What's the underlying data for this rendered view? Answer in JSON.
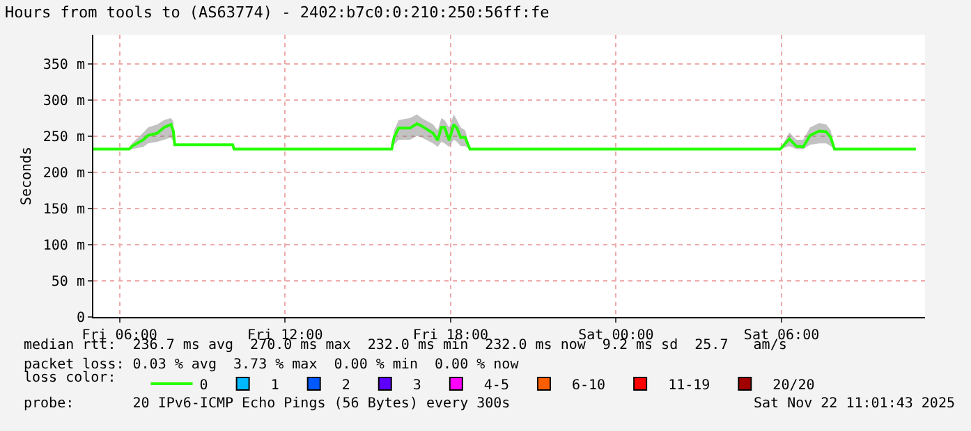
{
  "chart_data": {
    "type": "line",
    "title": "Hours from tools to (AS63774) - 2402:b7c0:0:210:250:56ff:fe",
    "ylabel": "Seconds",
    "x": [
      "2025-11-21T05:03",
      "2025-11-21T06:21",
      "2025-11-21T06:27",
      "2025-11-21T06:52",
      "2025-11-21T07:02",
      "2025-11-21T07:22",
      "2025-11-21T07:37",
      "2025-11-21T07:52",
      "2025-11-21T07:57",
      "2025-11-21T08:00",
      "2025-11-21T10:06",
      "2025-11-21T10:09",
      "2025-11-21T15:52",
      "2025-11-21T15:57",
      "2025-11-21T16:07",
      "2025-11-21T16:32",
      "2025-11-21T16:47",
      "2025-11-21T16:57",
      "2025-11-21T17:22",
      "2025-11-21T17:32",
      "2025-11-21T17:40",
      "2025-11-21T17:47",
      "2025-11-21T17:57",
      "2025-11-21T18:07",
      "2025-11-21T18:14",
      "2025-11-21T18:22",
      "2025-11-21T18:32",
      "2025-11-21T18:42",
      "2025-11-22T05:57",
      "2025-11-22T06:17",
      "2025-11-22T06:32",
      "2025-11-22T06:47",
      "2025-11-22T07:02",
      "2025-11-22T07:22",
      "2025-11-22T07:37",
      "2025-11-22T07:47",
      "2025-11-22T07:55",
      "2025-11-22T10:52"
    ],
    "xlim": [
      "2025-11-21T05:03",
      "2025-11-22T11:12"
    ],
    "xticks": [
      {
        "value": "2025-11-21T06:00",
        "label": "Fri 06:00"
      },
      {
        "value": "2025-11-21T12:00",
        "label": "Fri 12:00"
      },
      {
        "value": "2025-11-21T18:00",
        "label": "Fri 18:00"
      },
      {
        "value": "2025-11-22T00:00",
        "label": "Sat 00:00"
      },
      {
        "value": "2025-11-22T06:00",
        "label": "Sat 06:00"
      }
    ],
    "ylim": [
      0,
      390
    ],
    "yticks": [
      0,
      {
        "value": 50,
        "label": "50 m"
      },
      {
        "value": 100,
        "label": "100 m"
      },
      {
        "value": 150,
        "label": "150 m"
      },
      {
        "value": 200,
        "label": "200 m"
      },
      {
        "value": 250,
        "label": "250 m"
      },
      {
        "value": 300,
        "label": "300 m"
      },
      {
        "value": 350,
        "label": "350 m"
      }
    ],
    "grid": true,
    "legend": "bottom",
    "legend_title": "loss color:",
    "marker": "none",
    "line_style": "solid",
    "series": [
      {
        "name": "0",
        "color": "#26ff00",
        "values": [
          232,
          232,
          236,
          245,
          251,
          254,
          262,
          266,
          257,
          238,
          238,
          232,
          232,
          248,
          261,
          261,
          267,
          264,
          254,
          244,
          262,
          262,
          244,
          266,
          261,
          248,
          248,
          232,
          232,
          246,
          236,
          235,
          251,
          257,
          256,
          248,
          232,
          232
        ],
        "upper": [
          232,
          232,
          240,
          255,
          262,
          266,
          272,
          275,
          270,
          238,
          238,
          232,
          232,
          258,
          272,
          275,
          280,
          275,
          266,
          258,
          275,
          272,
          262,
          280,
          272,
          262,
          258,
          232,
          232,
          255,
          245,
          245,
          262,
          268,
          266,
          258,
          232,
          232
        ],
        "lower": [
          232,
          232,
          232,
          235,
          240,
          242,
          245,
          248,
          242,
          238,
          238,
          232,
          232,
          238,
          245,
          245,
          250,
          248,
          240,
          235,
          242,
          240,
          235,
          245,
          242,
          236,
          236,
          232,
          232,
          236,
          232,
          232,
          238,
          240,
          240,
          236,
          232,
          232
        ]
      },
      {
        "name": "1",
        "color": "#00b8ff",
        "type": "scatter",
        "marker": "square",
        "values": [
          null,
          null,
          null,
          null,
          null,
          null,
          null,
          null,
          null,
          null,
          null,
          null,
          null,
          null,
          null,
          null,
          null,
          null,
          null,
          null,
          null,
          null,
          null,
          null,
          null,
          null,
          null,
          null,
          null,
          null,
          null,
          null,
          null,
          null,
          null,
          null,
          null,
          null
        ]
      },
      {
        "name": "2",
        "color": "#0059ff",
        "type": "scatter",
        "marker": "square",
        "values": [
          null,
          null,
          null,
          null,
          null,
          null,
          null,
          null,
          null,
          null,
          null,
          null,
          null,
          null,
          null,
          null,
          null,
          null,
          null,
          null,
          null,
          null,
          null,
          null,
          null,
          null,
          null,
          null,
          null,
          null,
          null,
          null,
          null,
          null,
          null,
          null,
          null,
          null
        ]
      },
      {
        "name": "3",
        "color": "#5e00ff",
        "type": "scatter",
        "marker": "square",
        "values": [
          null,
          null,
          null,
          null,
          null,
          null,
          null,
          null,
          null,
          null,
          null,
          null,
          null,
          null,
          null,
          null,
          null,
          null,
          null,
          null,
          null,
          null,
          null,
          null,
          null,
          null,
          null,
          null,
          null,
          null,
          null,
          null,
          null,
          null,
          null,
          null,
          null,
          null
        ]
      },
      {
        "name": "4-5",
        "color": "#ff00ff",
        "type": "scatter",
        "marker": "square",
        "values": [
          null,
          null,
          null,
          null,
          null,
          null,
          null,
          null,
          null,
          null,
          null,
          null,
          null,
          null,
          null,
          null,
          null,
          null,
          null,
          null,
          null,
          null,
          null,
          null,
          null,
          null,
          null,
          null,
          null,
          null,
          null,
          null,
          null,
          null,
          null,
          null,
          null,
          null
        ]
      },
      {
        "name": "6-10",
        "color": "#ff5e00",
        "type": "scatter",
        "marker": "square",
        "values": [
          null,
          null,
          null,
          null,
          null,
          null,
          null,
          null,
          null,
          null,
          null,
          null,
          null,
          null,
          null,
          null,
          null,
          null,
          null,
          null,
          null,
          null,
          null,
          null,
          null,
          null,
          null,
          null,
          null,
          null,
          null,
          null,
          null,
          null,
          null,
          null,
          null,
          null
        ]
      },
      {
        "name": "11-19",
        "color": "#ff0000",
        "type": "scatter",
        "marker": "square",
        "values": [
          null,
          null,
          null,
          null,
          null,
          null,
          null,
          null,
          null,
          null,
          null,
          null,
          null,
          null,
          null,
          null,
          null,
          null,
          null,
          null,
          null,
          null,
          null,
          null,
          null,
          null,
          null,
          null,
          null,
          null,
          null,
          null,
          null,
          null,
          null,
          null,
          null,
          null
        ]
      },
      {
        "name": "20/20",
        "color": "#a10000",
        "type": "scatter",
        "marker": "square",
        "values": [
          null,
          null,
          null,
          null,
          null,
          null,
          null,
          null,
          null,
          null,
          null,
          null,
          null,
          null,
          null,
          null,
          null,
          null,
          null,
          null,
          null,
          null,
          null,
          null,
          null,
          null,
          null,
          null,
          null,
          null,
          null,
          null,
          null,
          null,
          null,
          null,
          null,
          null
        ]
      }
    ],
    "annotations": [
      "median rtt:  236.7 ms avg  270.0 ms max  232.0 ms min  232.0 ms now  9.2 ms sd  25.7   am/s",
      "packet loss: 0.03 % avg  3.73 % max  0.00 % min  0.00 % now",
      "probe:       20 IPv6-ICMP Echo Pings (56 Bytes) every 300s",
      "Sat Nov 22 11:01:43 2025"
    ]
  }
}
